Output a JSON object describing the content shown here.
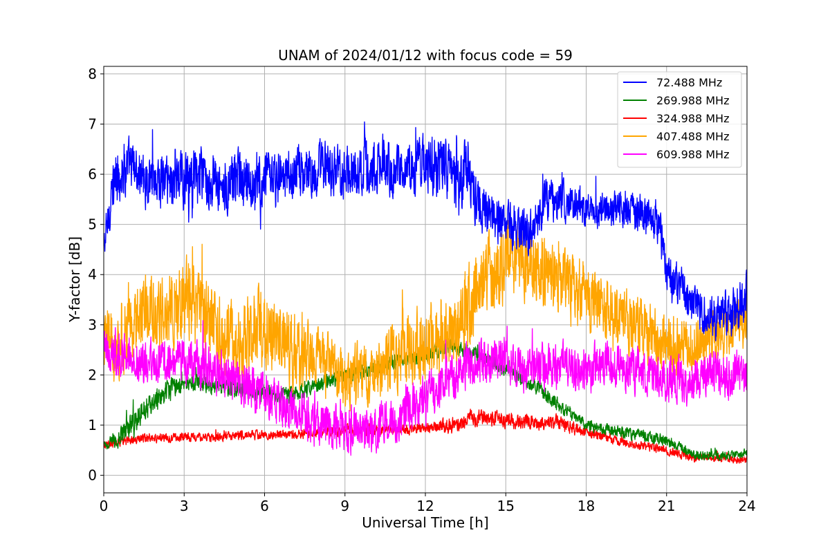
{
  "chart_data": {
    "type": "line",
    "title": "UNAM of 2024/01/12 with focus code = 59",
    "xlabel": "Universal Time [h]",
    "ylabel": "Y-factor [dB]",
    "xlim": [
      0,
      24
    ],
    "ylim": [
      -0.35,
      8.15
    ],
    "x_ticks": [
      0,
      3,
      6,
      9,
      12,
      15,
      18,
      21,
      24
    ],
    "y_ticks": [
      0,
      1,
      2,
      3,
      4,
      5,
      6,
      7,
      8
    ],
    "grid": true,
    "legend_position": "top-right",
    "series": [
      {
        "name": " 72.488 MHz",
        "color": "#0000ff",
        "x": [
          0,
          0.3,
          0.5,
          1,
          1.5,
          2,
          3,
          4,
          5,
          6,
          7,
          8,
          9,
          10,
          11,
          12,
          12.5,
          13,
          13.3,
          13.5,
          14,
          14.5,
          15,
          15.5,
          16,
          16.5,
          17,
          18,
          19,
          20,
          20.7,
          21,
          21.5,
          22,
          22.5,
          23,
          23.5,
          24
        ],
        "y": [
          4.5,
          5.6,
          6.0,
          6.2,
          5.9,
          5.9,
          5.9,
          5.9,
          5.8,
          5.8,
          6.0,
          6.1,
          6.1,
          6.1,
          6.1,
          6.2,
          6.2,
          6.0,
          5.8,
          6.3,
          5.3,
          5.1,
          5.0,
          4.9,
          4.9,
          5.5,
          5.5,
          5.3,
          5.3,
          5.2,
          5.1,
          4.0,
          3.7,
          3.4,
          3.1,
          3.2,
          3.3,
          3.6
        ],
        "amp": [
          0.5,
          0.6,
          0.8,
          0.7,
          0.7,
          0.7,
          0.8,
          0.8,
          0.8,
          0.8,
          0.7,
          0.7,
          0.7,
          0.7,
          0.7,
          0.7,
          0.9,
          0.7,
          0.9,
          0.8,
          0.7,
          0.6,
          0.6,
          0.6,
          0.6,
          0.6,
          0.5,
          0.5,
          0.5,
          0.5,
          0.6,
          0.5,
          0.6,
          0.6,
          0.6,
          0.6,
          0.6,
          0.7
        ]
      },
      {
        "name": "269.988 MHz",
        "color": "#008000",
        "x": [
          0,
          0.5,
          1,
          1.5,
          2,
          2.5,
          3,
          4,
          5,
          6,
          7,
          8,
          9,
          10,
          11,
          12,
          13,
          14,
          15,
          16,
          17,
          18,
          19,
          20,
          21,
          22,
          23,
          24
        ],
        "y": [
          0.6,
          0.7,
          1.0,
          1.3,
          1.5,
          1.7,
          1.9,
          1.8,
          1.7,
          1.6,
          1.6,
          1.8,
          2.0,
          2.1,
          2.3,
          2.4,
          2.6,
          2.4,
          2.1,
          1.8,
          1.4,
          1.0,
          0.9,
          0.8,
          0.7,
          0.4,
          0.4,
          0.45
        ],
        "amp": [
          0.12,
          0.2,
          0.3,
          0.3,
          0.3,
          0.3,
          0.25,
          0.25,
          0.25,
          0.25,
          0.2,
          0.2,
          0.2,
          0.2,
          0.2,
          0.2,
          0.2,
          0.2,
          0.2,
          0.2,
          0.2,
          0.15,
          0.15,
          0.15,
          0.15,
          0.12,
          0.12,
          0.12
        ]
      },
      {
        "name": "324.988 MHz",
        "color": "#ff0000",
        "x": [
          0,
          1,
          2,
          3,
          4,
          5,
          6,
          7,
          8,
          9,
          10,
          11,
          12,
          13,
          14,
          15,
          16,
          17,
          18,
          19,
          20,
          21,
          22,
          23,
          24
        ],
        "y": [
          0.6,
          0.7,
          0.75,
          0.75,
          0.75,
          0.8,
          0.8,
          0.8,
          0.85,
          0.9,
          0.9,
          0.9,
          0.95,
          1.0,
          1.15,
          1.1,
          1.05,
          1.05,
          0.85,
          0.7,
          0.6,
          0.5,
          0.35,
          0.35,
          0.3
        ],
        "amp": [
          0.1,
          0.12,
          0.12,
          0.12,
          0.12,
          0.12,
          0.12,
          0.12,
          0.12,
          0.15,
          0.15,
          0.15,
          0.15,
          0.2,
          0.2,
          0.2,
          0.2,
          0.2,
          0.15,
          0.12,
          0.12,
          0.12,
          0.1,
          0.1,
          0.1
        ]
      },
      {
        "name": "407.488 MHz",
        "color": "#ffa500",
        "x": [
          0,
          0.5,
          1,
          2,
          3,
          4,
          5,
          6,
          7,
          8,
          9,
          10,
          11,
          12,
          13,
          13.5,
          14,
          15,
          16,
          17,
          18,
          19,
          20,
          21,
          22,
          23,
          24
        ],
        "y": [
          2.8,
          2.5,
          3.0,
          3.3,
          3.5,
          3.0,
          2.6,
          3.0,
          2.5,
          2.3,
          1.9,
          2.0,
          2.4,
          2.6,
          2.9,
          3.2,
          3.8,
          4.3,
          4.2,
          3.8,
          3.6,
          3.2,
          2.9,
          2.6,
          2.6,
          2.8,
          3.1
        ],
        "amp": [
          0.9,
          0.9,
          1.0,
          1.0,
          1.1,
          1.0,
          1.0,
          1.1,
          1.0,
          0.9,
          0.8,
          0.8,
          0.9,
          1.0,
          1.0,
          1.1,
          1.1,
          1.0,
          1.0,
          0.9,
          0.9,
          0.8,
          0.8,
          0.8,
          0.7,
          0.7,
          0.7
        ]
      },
      {
        "name": "609.988 MHz",
        "color": "#ff00ff",
        "x": [
          0,
          1,
          2,
          3,
          4,
          5,
          6,
          7,
          8,
          9,
          10,
          11,
          12,
          13,
          14,
          15,
          16,
          17,
          18,
          19,
          20,
          21,
          22,
          23,
          24
        ],
        "y": [
          2.5,
          2.3,
          2.3,
          2.3,
          2.1,
          1.9,
          1.6,
          1.3,
          1.0,
          0.9,
          0.9,
          1.2,
          1.5,
          2.0,
          2.3,
          2.2,
          2.1,
          2.2,
          2.1,
          2.2,
          2.1,
          1.9,
          1.9,
          2.0,
          2.1
        ],
        "amp": [
          0.55,
          0.6,
          0.6,
          0.6,
          0.6,
          0.6,
          0.6,
          0.6,
          0.6,
          0.6,
          0.6,
          0.6,
          0.6,
          0.6,
          0.6,
          0.6,
          0.6,
          0.6,
          0.6,
          0.6,
          0.6,
          0.6,
          0.6,
          0.6,
          0.6
        ]
      }
    ]
  }
}
